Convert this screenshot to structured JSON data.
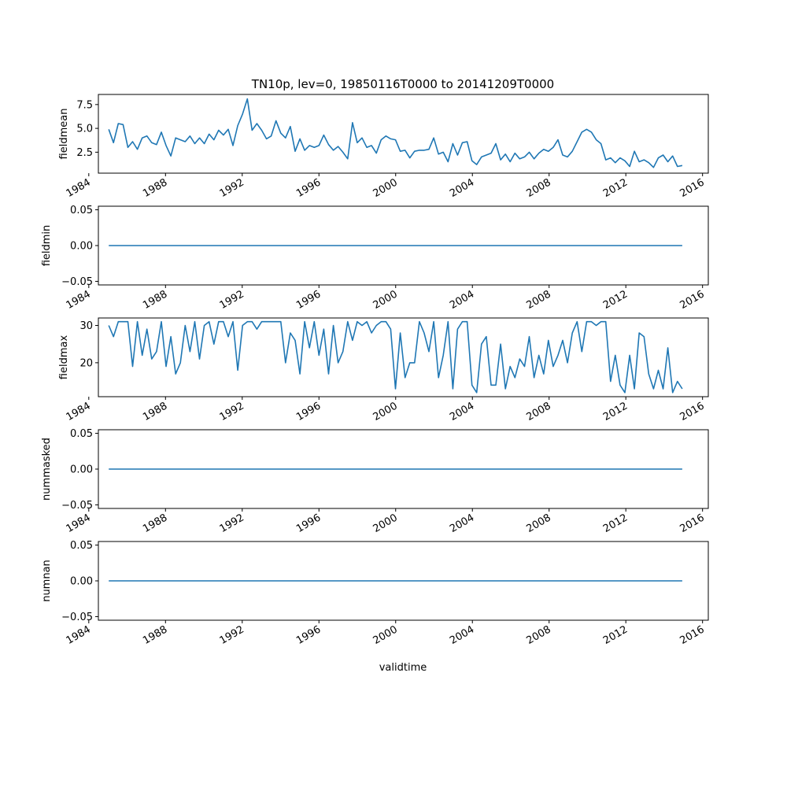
{
  "chart_data": {
    "type": "line",
    "title": "TN10p, lev=0, 19850116T0000 to 20141209T0000",
    "xlabel": "validtime",
    "x_range": [
      1984.5,
      2016.3
    ],
    "x_start": 1985.04,
    "x_end": 2014.94,
    "x_ticks": [
      1984,
      1988,
      1992,
      1996,
      2000,
      2004,
      2008,
      2012,
      2016
    ],
    "x_tick_labels": [
      "1984",
      "1988",
      "1992",
      "1996",
      "2000",
      "2004",
      "2008",
      "2012",
      "2016"
    ],
    "line_color": "#1f77b4",
    "grid": false,
    "panels": [
      {
        "ylabel": "fieldmean",
        "ylim": [
          0.3,
          8.56
        ],
        "y_ticks": [
          2.5,
          5.0,
          7.5
        ],
        "y_tick_labels": [
          "2.5",
          "5.0",
          "7.5"
        ],
        "values": [
          4.9,
          3.5,
          5.5,
          5.4,
          3.0,
          3.6,
          2.8,
          4.0,
          4.2,
          3.5,
          3.3,
          4.6,
          3.2,
          2.1,
          4.0,
          3.8,
          3.6,
          4.2,
          3.4,
          4.0,
          3.4,
          4.4,
          3.8,
          4.8,
          4.3,
          4.9,
          3.2,
          5.3,
          6.5,
          8.1,
          4.8,
          5.5,
          4.8,
          3.9,
          4.2,
          5.8,
          4.5,
          4.0,
          5.2,
          2.6,
          3.9,
          2.7,
          3.2,
          3.0,
          3.2,
          4.3,
          3.3,
          2.7,
          3.1,
          2.5,
          1.8,
          5.6,
          3.5,
          4.0,
          3.0,
          3.2,
          2.4,
          3.8,
          4.2,
          3.9,
          3.8,
          2.6,
          2.7,
          1.9,
          2.6,
          2.7,
          2.7,
          2.8,
          4.0,
          2.3,
          2.5,
          1.5,
          3.4,
          2.2,
          3.5,
          3.6,
          1.6,
          1.2,
          2.0,
          2.2,
          2.4,
          3.4,
          1.7,
          2.3,
          1.5,
          2.4,
          1.8,
          2.0,
          2.5,
          1.8,
          2.4,
          2.8,
          2.6,
          3.0,
          3.8,
          2.2,
          2.0,
          2.6,
          3.6,
          4.6,
          4.9,
          4.6,
          3.8,
          3.4,
          1.7,
          1.9,
          1.4,
          1.9,
          1.6,
          1.0,
          2.6,
          1.5,
          1.7,
          1.4,
          0.9,
          1.9,
          2.2,
          1.5,
          2.1,
          1.0,
          1.1
        ]
      },
      {
        "ylabel": "fieldmin",
        "ylim": [
          -0.055,
          0.055
        ],
        "y_ticks": [
          -0.05,
          0.0,
          0.05
        ],
        "y_tick_labels": [
          "−0.05",
          "0.00",
          "0.05"
        ],
        "values": [
          0,
          0
        ]
      },
      {
        "ylabel": "fieldmax",
        "ylim": [
          10.9,
          32.0
        ],
        "y_ticks": [
          20,
          30
        ],
        "y_tick_labels": [
          "20",
          "30"
        ],
        "values": [
          30,
          27,
          31,
          31,
          31,
          19,
          31,
          22,
          29,
          21,
          23,
          31,
          19,
          27,
          17,
          20,
          30,
          23,
          31,
          21,
          30,
          31,
          25,
          31,
          31,
          27,
          31,
          18,
          30,
          31,
          31,
          29,
          31,
          31,
          31,
          31,
          31,
          20,
          28,
          26,
          17,
          31,
          24,
          31,
          22,
          29,
          17,
          30,
          20,
          23,
          31,
          26,
          31,
          30,
          31,
          28,
          30,
          31,
          31,
          29,
          13,
          28,
          16,
          20,
          20,
          31,
          28,
          23,
          31,
          16,
          22,
          31,
          13,
          29,
          31,
          31,
          14,
          12,
          25,
          27,
          14,
          14,
          25,
          13,
          19,
          16,
          21,
          19,
          27,
          16,
          22,
          17,
          26,
          19,
          22,
          26,
          20,
          28,
          31,
          23,
          31,
          31,
          30,
          31,
          31,
          15,
          22,
          14,
          12,
          22,
          13,
          28,
          27,
          17,
          13,
          18,
          13,
          24,
          12,
          15,
          13
        ]
      },
      {
        "ylabel": "nummasked",
        "ylim": [
          -0.055,
          0.055
        ],
        "y_ticks": [
          -0.05,
          0.0,
          0.05
        ],
        "y_tick_labels": [
          "−0.05",
          "0.00",
          "0.05"
        ],
        "values": [
          0,
          0
        ]
      },
      {
        "ylabel": "numnan",
        "ylim": [
          -0.055,
          0.055
        ],
        "y_ticks": [
          -0.05,
          0.0,
          0.05
        ],
        "y_tick_labels": [
          "−0.05",
          "0.00",
          "0.05"
        ],
        "values": [
          0,
          0
        ]
      }
    ]
  }
}
